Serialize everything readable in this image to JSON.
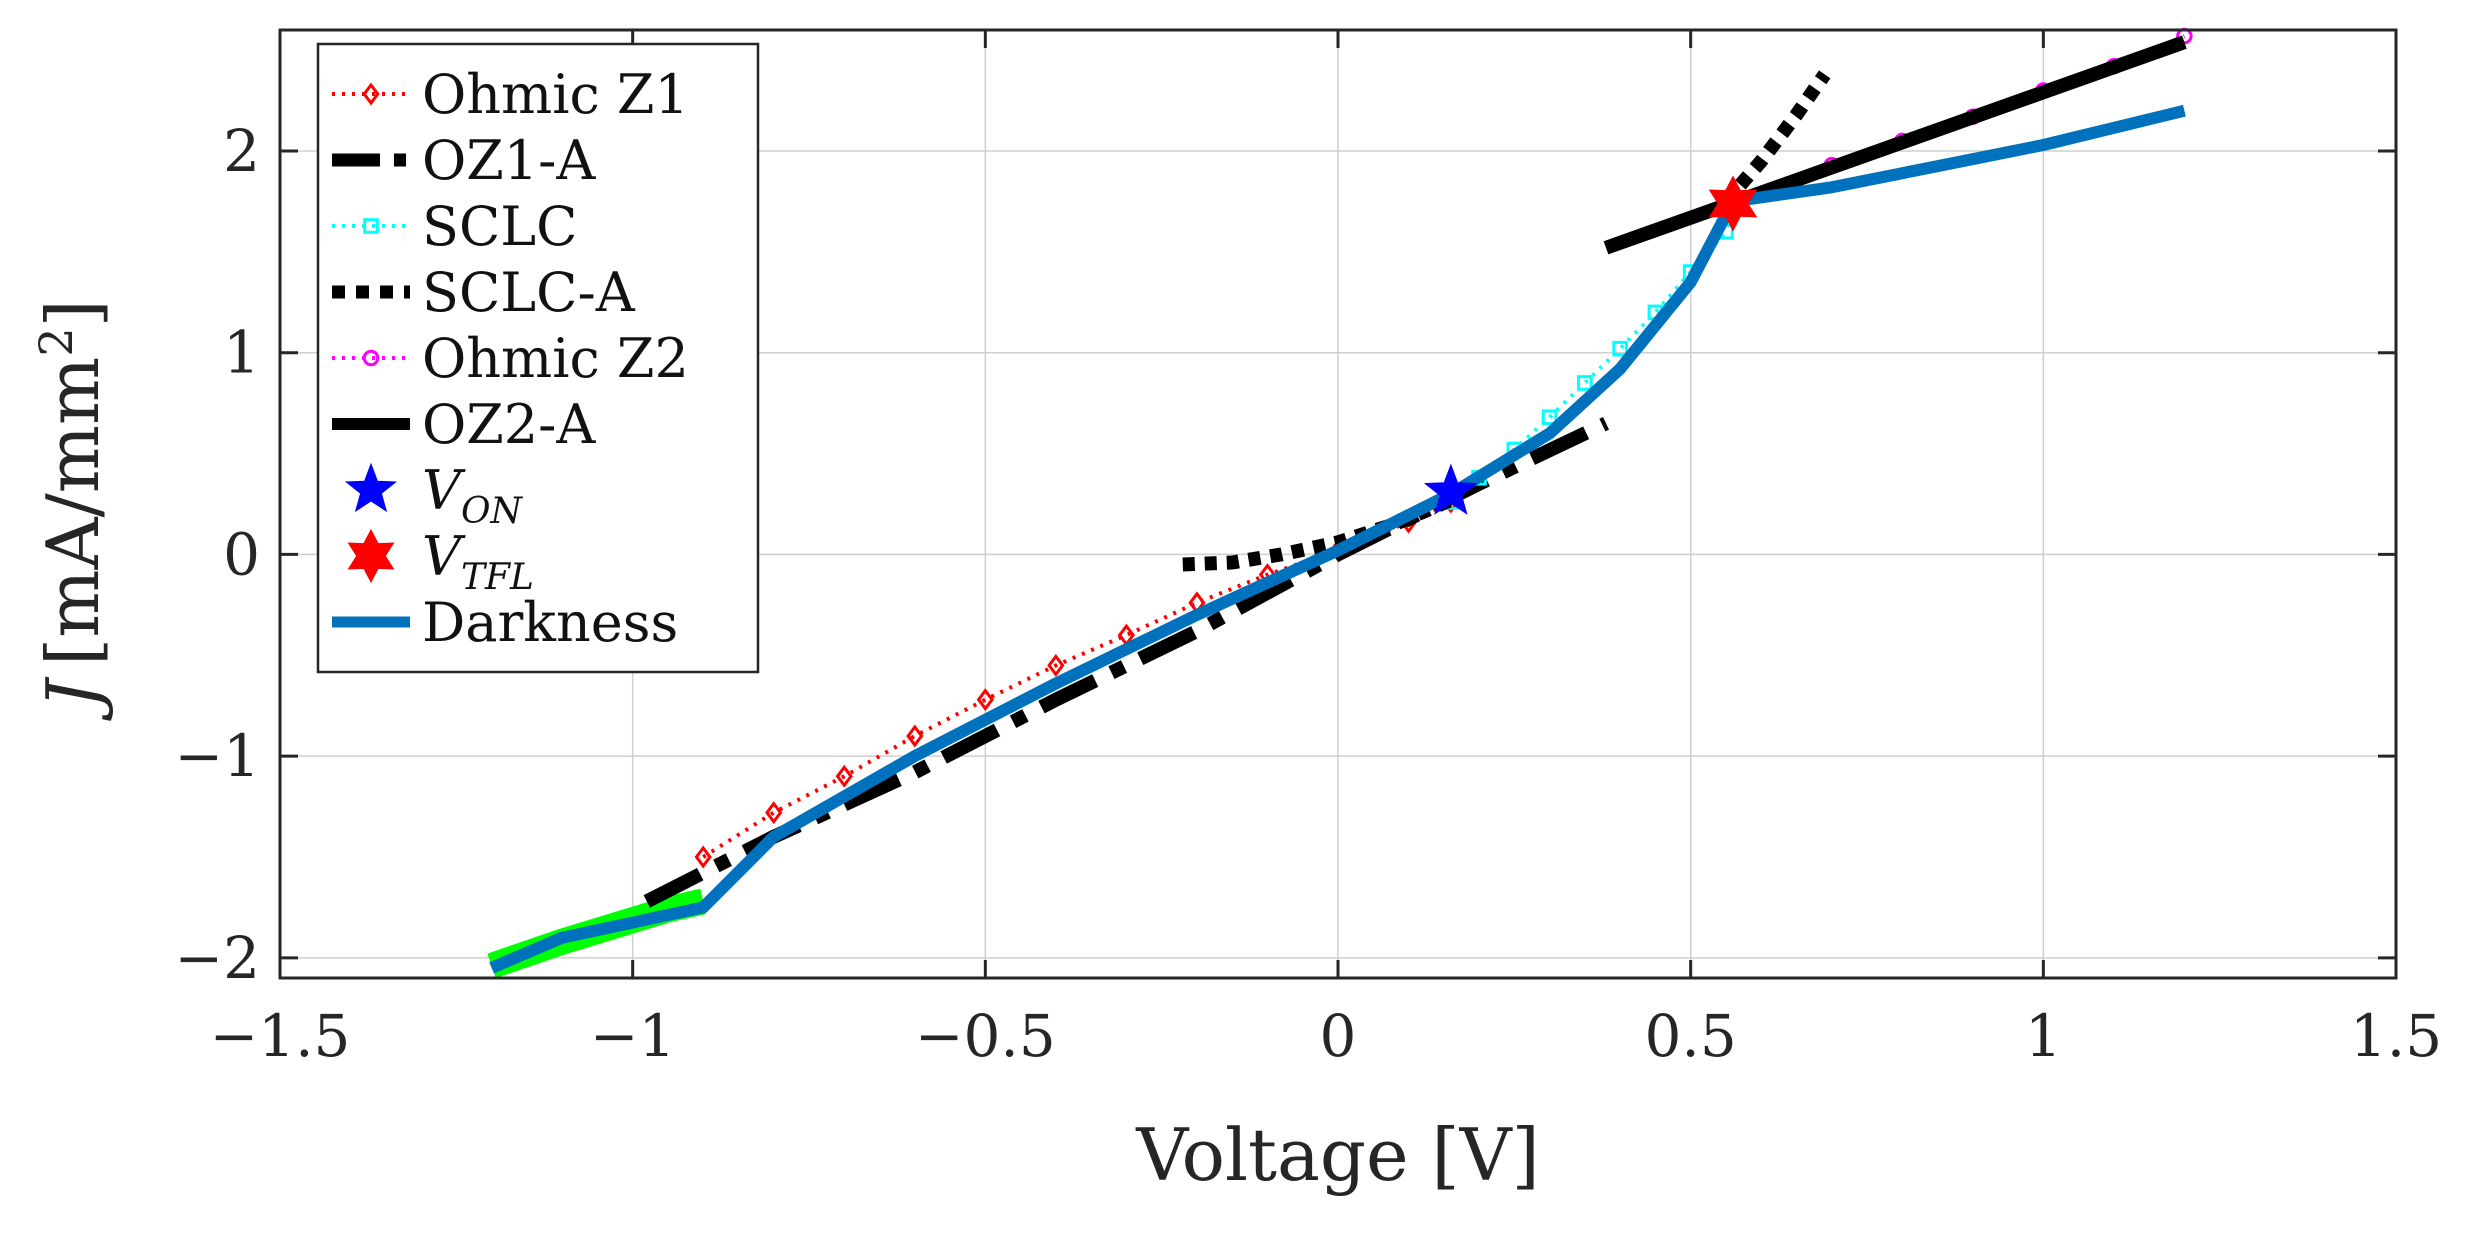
{
  "chart_data": {
    "type": "line",
    "title": "",
    "xlabel": "Voltage [V]",
    "ylabel": {
      "symbol": "J",
      "units": "[mA/mm",
      "sup": "2",
      "close": "]"
    },
    "xlim": [
      -1.5,
      1.5
    ],
    "ylim": [
      -2.1,
      2.6
    ],
    "xticks": [
      -1.5,
      -1,
      -0.5,
      0,
      0.5,
      1,
      1.5
    ],
    "xtick_labels": [
      "−1.5",
      "−1",
      "−0.5",
      "0",
      "0.5",
      "1",
      "1.5"
    ],
    "yticks": [
      -2,
      -1,
      0,
      1,
      2
    ],
    "ytick_labels": [
      "−2",
      "−1",
      "0",
      "1",
      "2"
    ],
    "grid": true,
    "legend_position": "top-left",
    "series": [
      {
        "name": "Ohmic Z1",
        "color": "#ff0000",
        "style": "dotted",
        "marker": "diamond",
        "width": 4,
        "x": [
          -0.9,
          -0.8,
          -0.7,
          -0.6,
          -0.5,
          -0.4,
          -0.3,
          -0.2,
          -0.1,
          0.0,
          0.1,
          0.16
        ],
        "y": [
          -1.5,
          -1.28,
          -1.1,
          -0.9,
          -0.72,
          -0.55,
          -0.4,
          -0.24,
          -0.1,
          0.02,
          0.16,
          0.26
        ]
      },
      {
        "name": "OZ1-A",
        "color": "#000000",
        "style": "dashdot",
        "marker": "none",
        "width": 14,
        "x": [
          -0.98,
          -0.8,
          -0.6,
          -0.4,
          -0.2,
          0.0,
          0.2,
          0.38
        ],
        "y": [
          -1.72,
          -1.4,
          -1.08,
          -0.72,
          -0.38,
          0.0,
          0.35,
          0.65
        ]
      },
      {
        "name": "SCLC",
        "color": "#00ffff",
        "style": "dotted",
        "marker": "square",
        "width": 4,
        "x": [
          0.16,
          0.2,
          0.25,
          0.3,
          0.35,
          0.4,
          0.45,
          0.5,
          0.55
        ],
        "y": [
          0.26,
          0.38,
          0.52,
          0.68,
          0.85,
          1.02,
          1.2,
          1.4,
          1.6
        ]
      },
      {
        "name": "SCLC-A",
        "color": "#000000",
        "style": "dotted",
        "marker": "none",
        "width": 14,
        "x": [
          -0.22,
          -0.15,
          -0.08,
          0.0,
          0.08,
          0.16
        ],
        "y": [
          -0.05,
          -0.04,
          0.0,
          0.06,
          0.15,
          0.27
        ]
      },
      {
        "name": "SCLC-A",
        "color": "#000000",
        "style": "dotted",
        "marker": "none",
        "width": 14,
        "x": [
          0.55,
          0.6,
          0.65,
          0.69
        ],
        "y": [
          1.75,
          1.95,
          2.18,
          2.38
        ]
      },
      {
        "name": "Ohmic Z2",
        "color": "#ff00ff",
        "style": "dotted",
        "marker": "circle",
        "width": 4,
        "x": [
          0.56,
          0.7,
          0.8,
          0.9,
          1.0,
          1.1,
          1.2
        ],
        "y": [
          1.75,
          1.93,
          2.05,
          2.17,
          2.3,
          2.42,
          2.57
        ]
      },
      {
        "name": "OZ2-A",
        "color": "#000000",
        "style": "solid",
        "marker": "none",
        "width": 14,
        "x": [
          0.38,
          1.2
        ],
        "y": [
          1.52,
          2.54
        ]
      },
      {
        "name": "Darkness",
        "color": "#0072bd",
        "style": "solid",
        "marker": "none",
        "width": 12,
        "x": [
          -1.2,
          -1.1,
          -0.9,
          -0.8,
          -0.6,
          -0.4,
          -0.2,
          0.0,
          0.16,
          0.3,
          0.4,
          0.5,
          0.56,
          0.7,
          0.9,
          1.0,
          1.2
        ],
        "y": [
          -2.05,
          -1.9,
          -1.75,
          -1.4,
          -1.0,
          -0.64,
          -0.3,
          0.02,
          0.3,
          0.6,
          0.92,
          1.35,
          1.75,
          1.82,
          1.96,
          2.03,
          2.2
        ]
      }
    ],
    "highlight": {
      "name": "green-band",
      "color": "#00ff00",
      "width": 26,
      "x": [
        -1.2,
        -1.1,
        -0.95,
        -0.9
      ],
      "y": [
        -2.04,
        -1.92,
        -1.76,
        -1.72
      ]
    },
    "points": [
      {
        "name": "V_ON",
        "x": 0.16,
        "y": 0.31,
        "color": "#0000ff",
        "marker": "pentagram"
      },
      {
        "name": "V_TFL",
        "x": 0.56,
        "y": 1.74,
        "color": "#ff0000",
        "marker": "hexagram"
      }
    ],
    "legend": [
      {
        "label": "Ohmic Z1",
        "sub": "",
        "color": "#ff0000",
        "style": "dotted",
        "marker": "diamond"
      },
      {
        "label": "OZ1-A",
        "sub": "",
        "color": "#000000",
        "style": "dashdot",
        "marker": "none"
      },
      {
        "label": "SCLC",
        "sub": "",
        "color": "#00ffff",
        "style": "dotted",
        "marker": "square"
      },
      {
        "label": "SCLC-A",
        "sub": "",
        "color": "#000000",
        "style": "dotted-thick",
        "marker": "none"
      },
      {
        "label": "Ohmic Z2",
        "sub": "",
        "color": "#ff00ff",
        "style": "dotted",
        "marker": "circle"
      },
      {
        "label": "OZ2-A",
        "sub": "",
        "color": "#000000",
        "style": "solid-thick",
        "marker": "none"
      },
      {
        "label": "V",
        "sub": "ON",
        "color": "#0000ff",
        "style": "none",
        "marker": "pentagram"
      },
      {
        "label": "V",
        "sub": "TFL",
        "color": "#ff0000",
        "style": "none",
        "marker": "hexagram"
      },
      {
        "label": "Darkness",
        "sub": "",
        "color": "#0072bd",
        "style": "solid-blue",
        "marker": "none"
      }
    ]
  }
}
